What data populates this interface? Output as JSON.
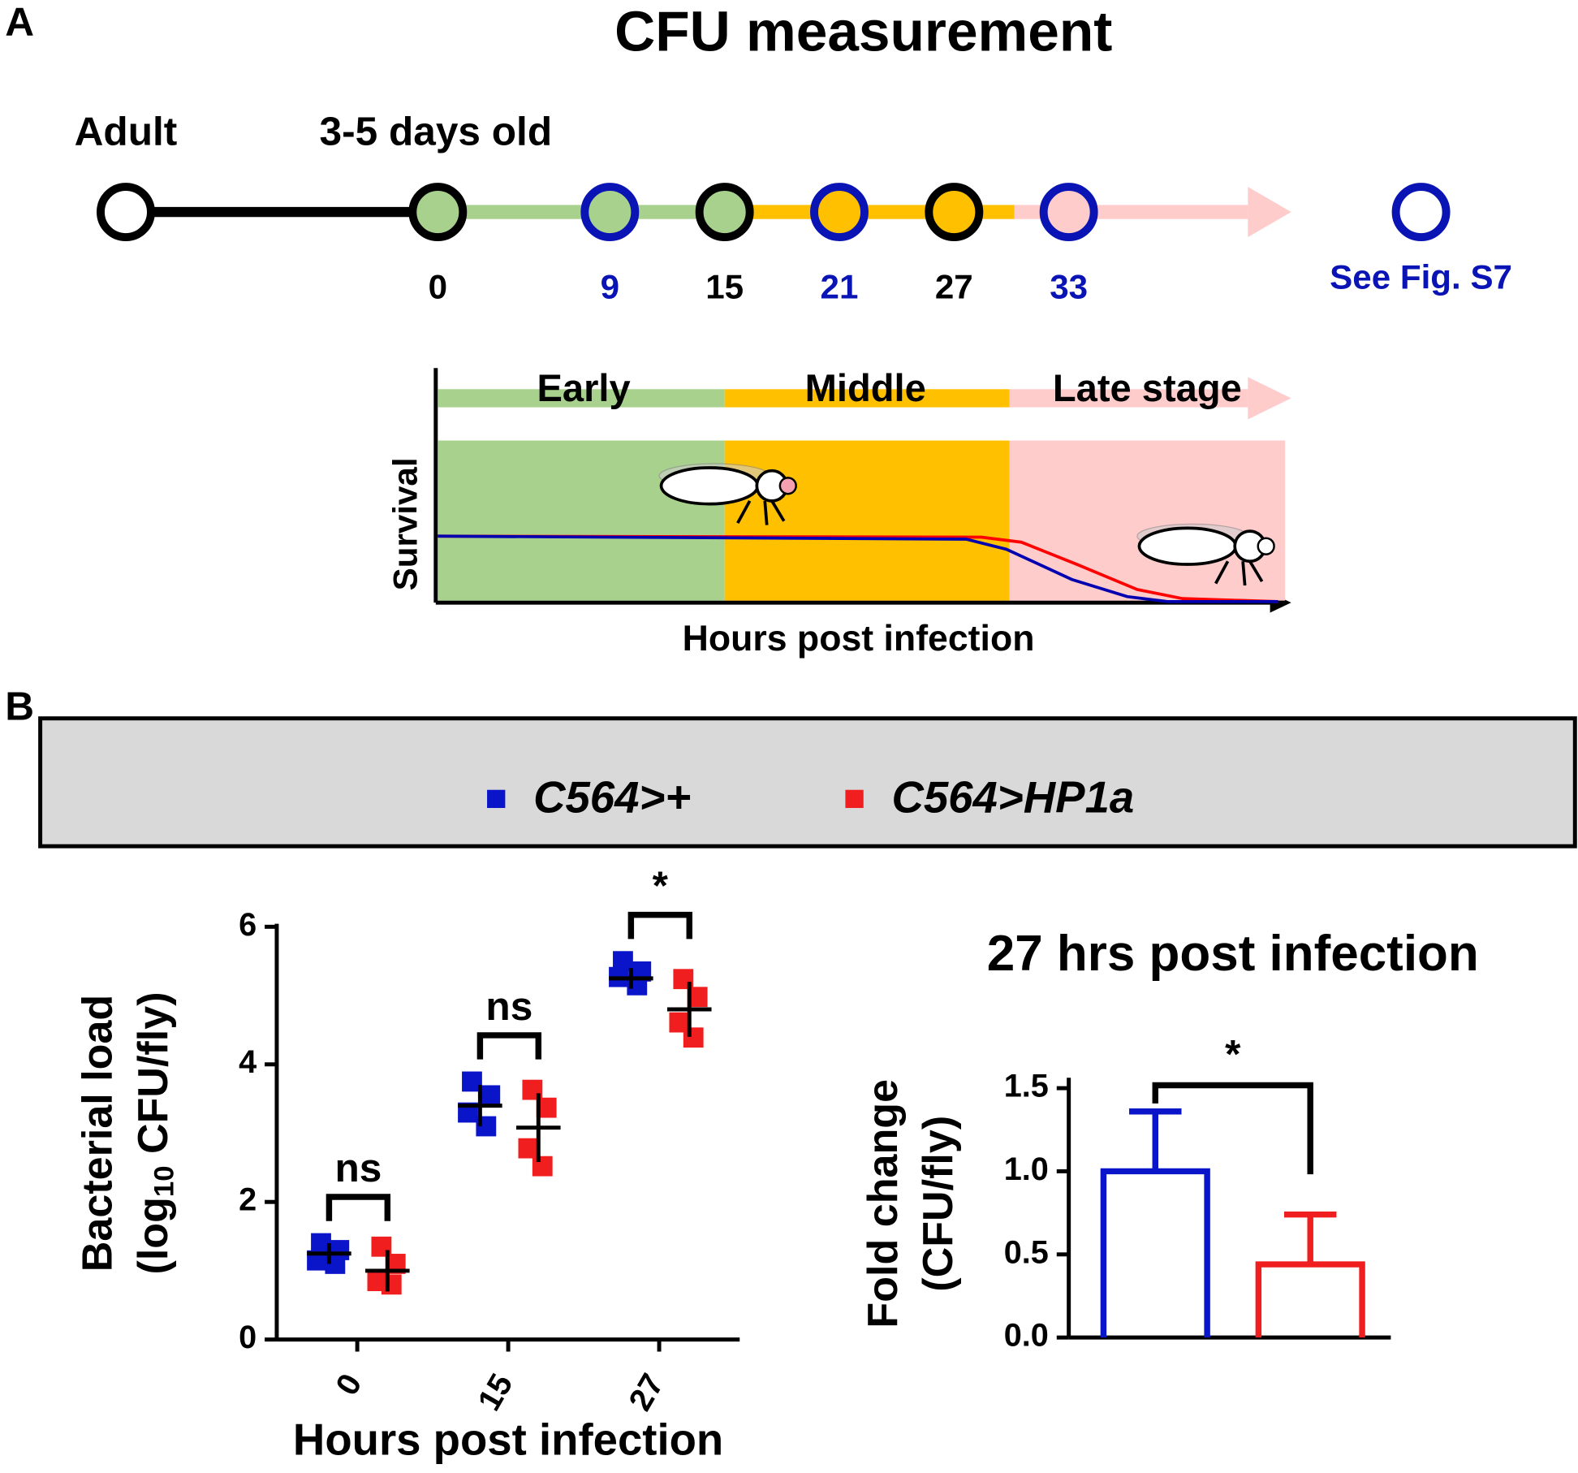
{
  "panel_labels": [
    "A",
    "B"
  ],
  "timeline": {
    "title": "CFU measurement",
    "start_label": "Adult",
    "age_label": "3-5 days old",
    "points": [
      0,
      9,
      15,
      21,
      27,
      33
    ],
    "point_colors": [
      "#000000",
      "#0a14b4",
      "#000000",
      "#0a14b4",
      "#000000",
      "#0a14b4"
    ],
    "note": "See Fig. S7"
  },
  "stages": {
    "labels": [
      "Early",
      "Middle",
      "Late stage"
    ],
    "colors": [
      "#a9d18e",
      "#ffc000",
      "#ffcccc"
    ],
    "ylabel": "Survival",
    "xlabel": "Hours post infection"
  },
  "chart_data": [
    {
      "type": "scatter",
      "categories": [
        "0",
        "15",
        "27"
      ],
      "xlabel": "Hours post infection",
      "ylabel": {
        "line1": "Bacterial load",
        "prefix": "(log",
        "sub": "10",
        "suffix": " CFU/fly)"
      },
      "ylim": [
        0,
        6
      ],
      "yticks": [
        0,
        2,
        4,
        6
      ],
      "series": [
        {
          "name": "C564>+",
          "color": "#0a14c8",
          "values": [
            [
              1.4,
              1.3,
              1.15,
              1.1
            ],
            [
              3.75,
              3.55,
              3.3,
              3.1
            ],
            [
              5.5,
              5.35,
              5.27,
              5.15
            ]
          ],
          "means": [
            1.25,
            3.4,
            5.25
          ],
          "errors": [
            0.15,
            0.3,
            0.15
          ]
        },
        {
          "name": "C564>HP1a",
          "color": "#f01e1e",
          "values": [
            [
              1.35,
              1.1,
              0.85,
              0.8
            ],
            [
              3.63,
              3.37,
              2.78,
              2.52
            ],
            [
              5.24,
              4.98,
              4.61,
              4.39
            ]
          ],
          "means": [
            1.0,
            3.08,
            4.8
          ],
          "errors": [
            0.3,
            0.5,
            0.4
          ]
        }
      ],
      "annotations": [
        "ns",
        "ns",
        "*"
      ]
    },
    {
      "type": "bar",
      "title": "27 hrs post infection",
      "ylabel": [
        "Fold change",
        "(CFU/fly)"
      ],
      "categories": [
        null,
        null
      ],
      "values": [
        1.0,
        0.44
      ],
      "errors": [
        0.36,
        0.3
      ],
      "colors": [
        "#0a14c8",
        "#f01e1e"
      ],
      "ylim": [
        0,
        1.5
      ],
      "yticks": [
        {
          "value": 0,
          "label": "0.0"
        },
        {
          "value": 0.5,
          "label": "0.5"
        },
        {
          "value": 1,
          "label": "1.0"
        },
        {
          "value": 1.5,
          "label": "1.5"
        }
      ],
      "annotation": "*"
    }
  ]
}
